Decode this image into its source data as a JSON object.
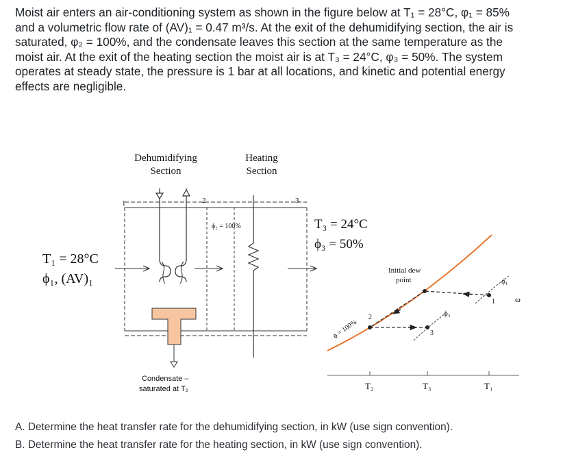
{
  "problem": {
    "lines": [
      "Moist air enters an air-conditioning system as shown in the figure below at T₁ = 28°C, φ₁ = 85%",
      "and a volumetric flow rate of (AV)₁ = 0.47 m³/s. At the exit of the dehumidifying section, the air is",
      "saturated, φ₂ = 100%, and the condensate leaves this section at the same temperature as the",
      "moist air. At the exit of the heating section the moist air is at T₃ = 24°C, φ₃ = 50%. The system",
      "operates at steady state, the pressure is 1 bar at all locations, and kinetic and potential energy",
      "effects are negligible."
    ]
  },
  "figure": {
    "dehumidifying_label": [
      "Dehumidifying",
      "Section"
    ],
    "heating_label": [
      "Heating",
      "Section"
    ],
    "state_1_number": "1",
    "state_2_number": "2",
    "state_3_number": "3",
    "inlet_T": "T₁ = 28°C",
    "inlet_phi": "ϕ₁, (AV)₁",
    "phi2_label": "ϕ₂ = 100%",
    "exit_T": "T₃ = 24°C",
    "exit_phi": "ϕ₃ = 50%",
    "condensate_label": [
      "Condensate –",
      "saturated at T₂"
    ],
    "dew_point_label": [
      "Initial dew",
      "point"
    ],
    "saturation_label": "ϕ = 100%",
    "chart_point_1": "1",
    "chart_point_2": "2",
    "chart_point_3": "3",
    "phi1_chart": "ϕ₁",
    "phi3_chart": "ϕ₃",
    "omega": "ω",
    "T2_tick": "T₂",
    "T3_tick": "T₃",
    "T1_tick": "T₁",
    "colors": {
      "condensate_fill": "#f7c6a0",
      "saturation_curve": "#e8762c"
    }
  },
  "questions": {
    "a": "A. Determine the heat transfer rate for the dehumidifying section, in kW (use sign convention).",
    "b": "B. Determine the heat transfer rate for the heating section, in kW (use sign convention)."
  }
}
